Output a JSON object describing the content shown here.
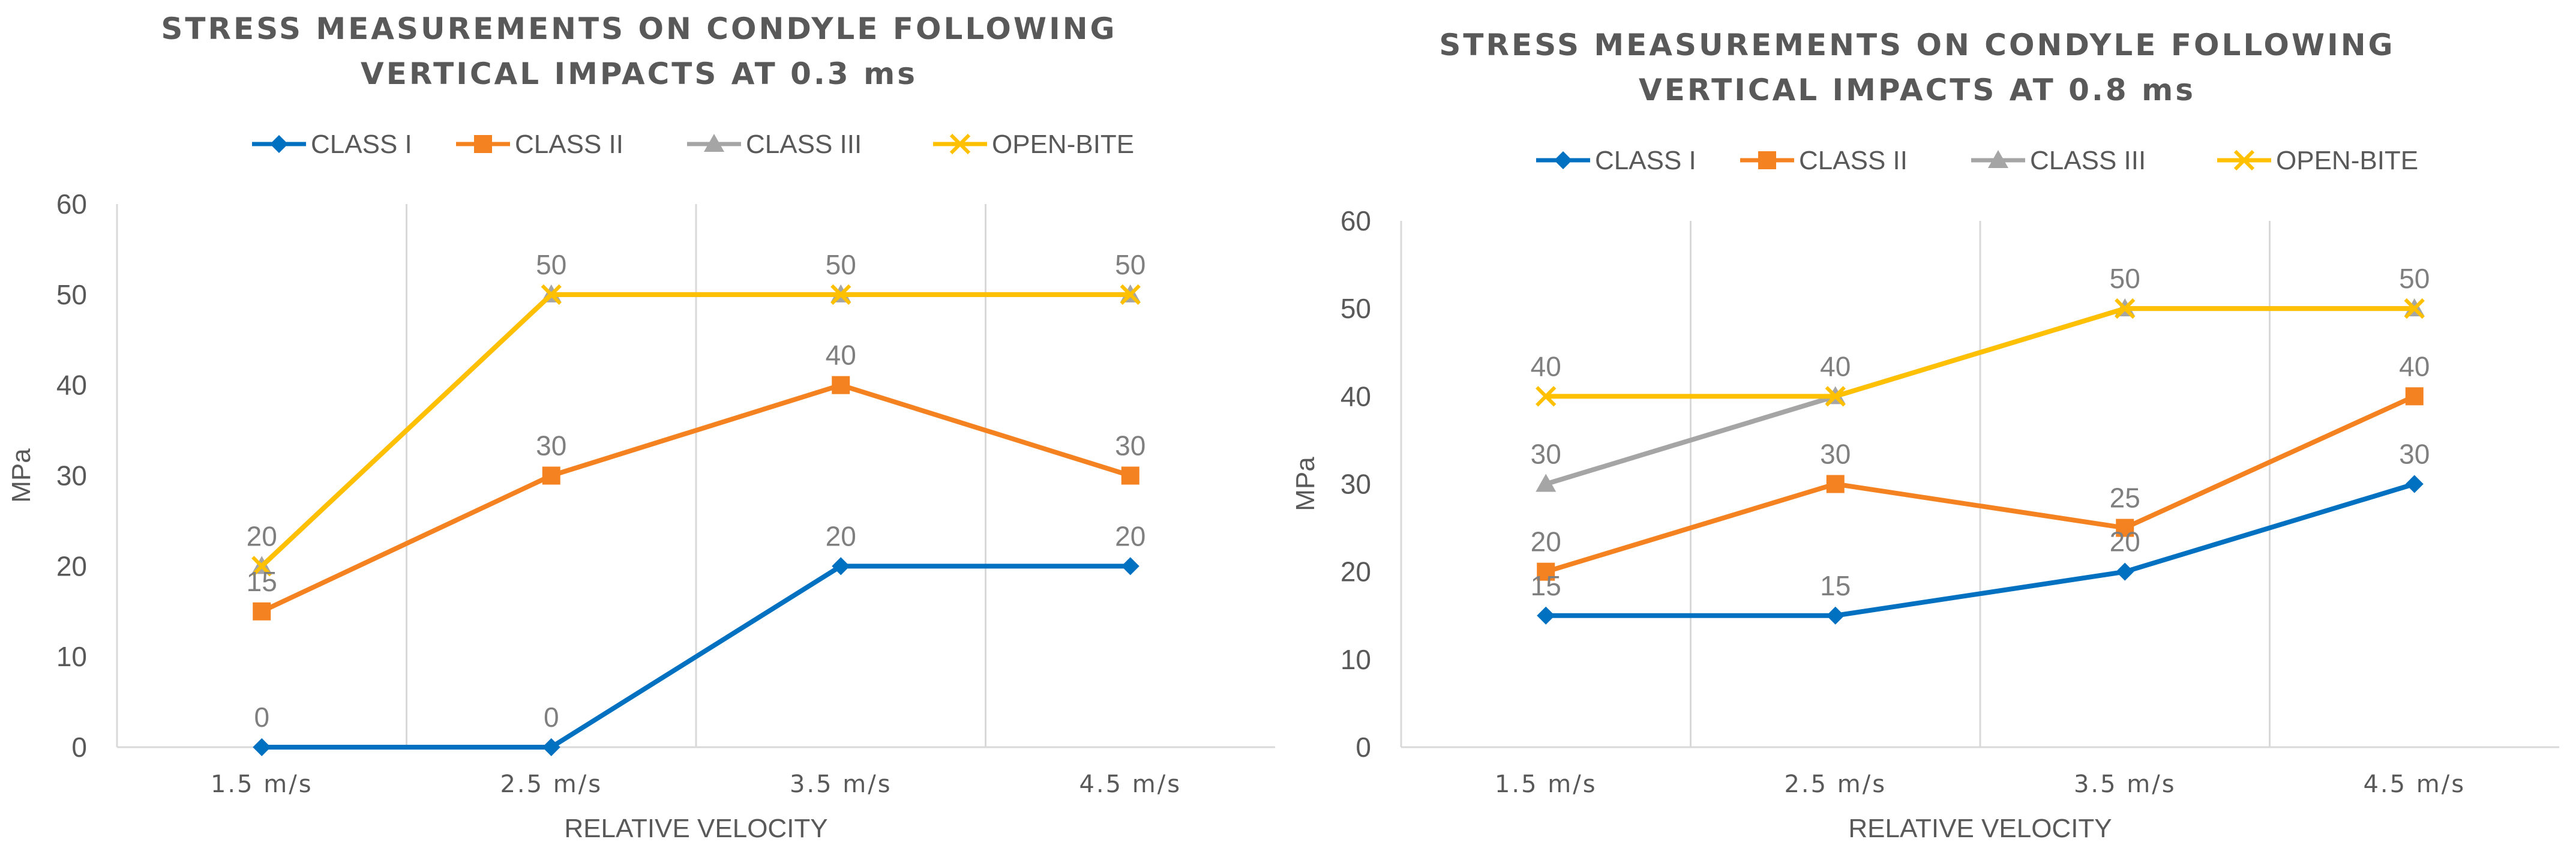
{
  "chart_data": [
    {
      "type": "line",
      "title_lines": [
        "STRESS MEASUREMENTS ON CONDYLE FOLLOWING",
        "VERTICAL IMPACTS AT 0.3 ms"
      ],
      "categories": [
        "1.5 m/s",
        "2.5 m/s",
        "3.5 m/s",
        "4.5 m/s"
      ],
      "xlabel": "RELATIVE VELOCITY",
      "ylabel": "MPa",
      "ylim": [
        0,
        60
      ],
      "yticks": [
        0,
        10,
        20,
        30,
        40,
        50,
        60
      ],
      "ytick_labels": [
        "0",
        "10",
        "20",
        "30",
        "40",
        "50",
        "60"
      ],
      "legend_position": "top",
      "series": [
        {
          "name": "CLASS I",
          "color": "#0070C0",
          "marker": "diamond",
          "values": [
            0,
            0,
            20,
            20
          ],
          "labels": [
            "0",
            "0",
            "20",
            "20"
          ]
        },
        {
          "name": "CLASS II",
          "color": "#F58220",
          "marker": "square",
          "values": [
            15,
            30,
            40,
            30
          ],
          "labels": [
            "15",
            "30",
            "40",
            "30"
          ]
        },
        {
          "name": "CLASS III",
          "color": "#A5A5A5",
          "marker": "triangle",
          "values": [
            20,
            50,
            50,
            50
          ],
          "labels": []
        },
        {
          "name": "OPEN-BITE",
          "color": "#FFC000",
          "marker": "x",
          "values": [
            20,
            50,
            50,
            50
          ],
          "labels": [
            "20",
            "50",
            "50",
            "50"
          ]
        }
      ]
    },
    {
      "type": "line",
      "title_lines": [
        "STRESS MEASUREMENTS ON CONDYLE FOLLOWING",
        "VERTICAL IMPACTS AT 0.8 ms"
      ],
      "categories": [
        "1.5 m/s",
        "2.5 m/s",
        "3.5 m/s",
        "4.5 m/s"
      ],
      "xlabel": "RELATIVE VELOCITY",
      "ylabel": "MPa",
      "ylim": [
        0,
        60
      ],
      "yticks": [
        0,
        10,
        20,
        30,
        40,
        50,
        60
      ],
      "ytick_labels": [
        "0",
        "10",
        "20",
        "30",
        "40",
        "50",
        "60"
      ],
      "legend_position": "top",
      "series": [
        {
          "name": "CLASS I",
          "color": "#0070C0",
          "marker": "diamond",
          "values": [
            15,
            15,
            20,
            30
          ],
          "labels": [
            "15",
            "15",
            "20",
            "30"
          ]
        },
        {
          "name": "CLASS II",
          "color": "#F58220",
          "marker": "square",
          "values": [
            20,
            30,
            25,
            40
          ],
          "labels": [
            "20",
            "30",
            "25",
            "40"
          ]
        },
        {
          "name": "CLASS III",
          "color": "#A5A5A5",
          "marker": "triangle",
          "values": [
            30,
            40,
            50,
            50
          ],
          "labels": [
            "30",
            "",
            "",
            ""
          ]
        },
        {
          "name": "OPEN-BITE",
          "color": "#FFC000",
          "marker": "x",
          "values": [
            40,
            40,
            50,
            50
          ],
          "labels": [
            "40",
            "40",
            "50",
            "50"
          ]
        }
      ]
    }
  ]
}
